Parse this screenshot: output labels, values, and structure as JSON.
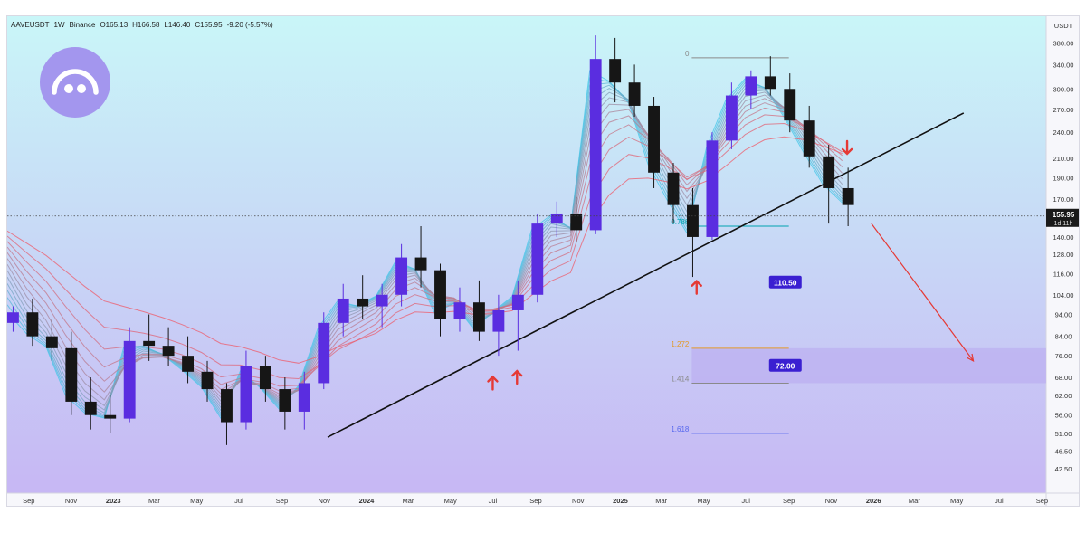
{
  "header": {
    "symbol": "AAVEUSDT",
    "interval": "1W",
    "exchange": "Binance",
    "open": "O165.13",
    "high": "H166.58",
    "low": "L146.40",
    "close": "C155.95",
    "change": "-9.20 (-5.57%)"
  },
  "logo": {
    "icon": "smiley-icon",
    "color": "#a396ee"
  },
  "chart_data": {
    "type": "candlestick",
    "title": "",
    "currency_label": "USDT",
    "y_scale": "log",
    "ylim": [
      40,
      420
    ],
    "y_ticks": [
      "380.00",
      "340.00",
      "300.00",
      "270.00",
      "240.00",
      "210.00",
      "190.00",
      "170.00",
      "140.00",
      "128.00",
      "116.00",
      "104.00",
      "94.00",
      "84.00",
      "76.00",
      "68.00",
      "62.00",
      "56.00",
      "51.00",
      "46.50",
      "42.50"
    ],
    "x_ticks": [
      "Sep",
      "Nov",
      "2023",
      "Mar",
      "May",
      "Jul",
      "Sep",
      "Nov",
      "2024",
      "Mar",
      "May",
      "Jul",
      "Sep",
      "Nov",
      "2025",
      "Mar",
      "May",
      "Jul",
      "Sep",
      "Nov",
      "2026",
      "Mar",
      "May",
      "Jul",
      "Sep"
    ],
    "x_start": "2022-08-01",
    "x_end": "2026-09-07",
    "last_price": {
      "value": 155.95,
      "label": "155.95",
      "countdown": "1d 11h",
      "color": "#1a1a1a"
    },
    "candles": [
      {
        "date": "2022-08-01",
        "o": 90,
        "h": 98,
        "l": 86,
        "c": 95
      },
      {
        "date": "2022-08-29",
        "o": 95,
        "h": 102,
        "l": 80,
        "c": 84
      },
      {
        "date": "2022-09-26",
        "o": 84,
        "h": 92,
        "l": 74,
        "c": 79
      },
      {
        "date": "2022-10-24",
        "o": 79,
        "h": 86,
        "l": 56,
        "c": 60
      },
      {
        "date": "2022-11-21",
        "o": 60,
        "h": 68,
        "l": 52,
        "c": 56
      },
      {
        "date": "2022-12-19",
        "o": 56,
        "h": 62,
        "l": 51,
        "c": 55
      },
      {
        "date": "2023-01-16",
        "o": 55,
        "h": 88,
        "l": 54,
        "c": 82
      },
      {
        "date": "2023-02-13",
        "o": 82,
        "h": 94,
        "l": 74,
        "c": 80
      },
      {
        "date": "2023-03-13",
        "o": 80,
        "h": 88,
        "l": 72,
        "c": 76
      },
      {
        "date": "2023-04-10",
        "o": 76,
        "h": 84,
        "l": 66,
        "c": 70
      },
      {
        "date": "2023-05-08",
        "o": 70,
        "h": 74,
        "l": 60,
        "c": 64
      },
      {
        "date": "2023-06-05",
        "o": 64,
        "h": 66,
        "l": 48,
        "c": 54
      },
      {
        "date": "2023-07-03",
        "o": 54,
        "h": 78,
        "l": 52,
        "c": 72
      },
      {
        "date": "2023-07-31",
        "o": 72,
        "h": 76,
        "l": 60,
        "c": 64
      },
      {
        "date": "2023-08-28",
        "o": 64,
        "h": 68,
        "l": 52,
        "c": 57
      },
      {
        "date": "2023-09-25",
        "o": 57,
        "h": 70,
        "l": 52,
        "c": 66
      },
      {
        "date": "2023-10-23",
        "o": 66,
        "h": 95,
        "l": 64,
        "c": 90
      },
      {
        "date": "2023-11-20",
        "o": 90,
        "h": 110,
        "l": 84,
        "c": 102
      },
      {
        "date": "2023-12-18",
        "o": 102,
        "h": 115,
        "l": 92,
        "c": 98
      },
      {
        "date": "2024-01-15",
        "o": 98,
        "h": 110,
        "l": 88,
        "c": 104
      },
      {
        "date": "2024-02-12",
        "o": 104,
        "h": 135,
        "l": 98,
        "c": 126
      },
      {
        "date": "2024-03-11",
        "o": 126,
        "h": 148,
        "l": 108,
        "c": 118
      },
      {
        "date": "2024-04-08",
        "o": 118,
        "h": 122,
        "l": 84,
        "c": 92
      },
      {
        "date": "2024-05-06",
        "o": 92,
        "h": 108,
        "l": 86,
        "c": 100
      },
      {
        "date": "2024-06-03",
        "o": 100,
        "h": 112,
        "l": 82,
        "c": 86
      },
      {
        "date": "2024-07-01",
        "o": 86,
        "h": 104,
        "l": 76,
        "c": 96
      },
      {
        "date": "2024-07-29",
        "o": 96,
        "h": 112,
        "l": 78,
        "c": 104
      },
      {
        "date": "2024-08-26",
        "o": 104,
        "h": 158,
        "l": 100,
        "c": 150
      },
      {
        "date": "2024-09-23",
        "o": 150,
        "h": 168,
        "l": 140,
        "c": 158
      },
      {
        "date": "2024-10-21",
        "o": 158,
        "h": 172,
        "l": 136,
        "c": 145
      },
      {
        "date": "2024-11-18",
        "o": 145,
        "h": 395,
        "l": 142,
        "c": 350
      },
      {
        "date": "2024-12-16",
        "o": 350,
        "h": 390,
        "l": 280,
        "c": 310
      },
      {
        "date": "2025-01-13",
        "o": 310,
        "h": 340,
        "l": 260,
        "c": 275
      },
      {
        "date": "2025-02-10",
        "o": 275,
        "h": 288,
        "l": 180,
        "c": 195
      },
      {
        "date": "2025-03-10",
        "o": 195,
        "h": 205,
        "l": 150,
        "c": 165
      },
      {
        "date": "2025-04-07",
        "o": 165,
        "h": 180,
        "l": 114,
        "c": 140
      },
      {
        "date": "2025-05-05",
        "o": 140,
        "h": 240,
        "l": 138,
        "c": 230
      },
      {
        "date": "2025-06-02",
        "o": 230,
        "h": 310,
        "l": 220,
        "c": 290
      },
      {
        "date": "2025-06-30",
        "o": 290,
        "h": 330,
        "l": 270,
        "c": 320
      },
      {
        "date": "2025-07-28",
        "o": 320,
        "h": 355,
        "l": 290,
        "c": 300
      },
      {
        "date": "2025-08-25",
        "o": 300,
        "h": 325,
        "l": 240,
        "c": 255
      },
      {
        "date": "2025-09-22",
        "o": 255,
        "h": 275,
        "l": 200,
        "c": 212
      },
      {
        "date": "2025-10-20",
        "o": 212,
        "h": 225,
        "l": 150,
        "c": 180
      },
      {
        "date": "2025-11-17",
        "o": 180,
        "h": 200,
        "l": 148,
        "c": 165
      }
    ],
    "ribbon": {
      "fast_color": "#3ec6e8",
      "slow_color": "#ef5b6a",
      "colors": [
        "#3ec6e8",
        "#8a9bb8",
        "#ef5b6a"
      ]
    },
    "trendline": {
      "from": {
        "date": "2023-11-06",
        "value": 50
      },
      "to": {
        "date": "2026-05-11",
        "value": 265
      },
      "color": "#111111"
    },
    "fib_levels": [
      {
        "label": "0",
        "value": 352,
        "color": "#8a8a8a"
      },
      {
        "label": "0.786",
        "value": 148,
        "color": "#00a3b0"
      },
      {
        "label": "1.272",
        "value": 79,
        "color": "#e39a28"
      },
      {
        "label": "1.414",
        "value": 66,
        "color": "#8a8a8a"
      },
      {
        "label": "1.618",
        "value": 51,
        "color": "#5566ee"
      }
    ],
    "annotations": [
      {
        "text": "110.50",
        "value": 110.5,
        "date": "2025-09-22"
      },
      {
        "text": "72.00",
        "value": 72,
        "date": "2025-09-22"
      }
    ],
    "target_zone": {
      "from_value": 66,
      "to_value": 79,
      "color": "#b9aaf0"
    },
    "projection_arrow": {
      "from": {
        "date": "2025-12-29",
        "value": 150
      },
      "to": {
        "date": "2026-05-25",
        "value": 74
      },
      "color": "#e53935"
    },
    "markers": [
      {
        "type": "up",
        "date": "2024-07-01",
        "value": 66,
        "color": "#e53935"
      },
      {
        "type": "up",
        "date": "2024-08-05",
        "value": 68,
        "color": "#e53935"
      },
      {
        "type": "up",
        "date": "2025-04-21",
        "value": 108,
        "color": "#e53935"
      },
      {
        "type": "down",
        "date": "2025-11-24",
        "value": 222,
        "color": "#e53935"
      }
    ],
    "colors": {
      "bg_top": "#c9f6f8",
      "bg_bottom": "#c7b7f4",
      "bull": "#5a2de0",
      "bear": "#161616",
      "label_bg": "#3a1fd1"
    }
  }
}
